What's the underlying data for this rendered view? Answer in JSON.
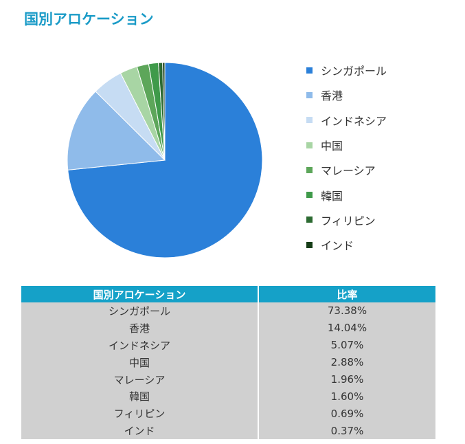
{
  "page": {
    "title": "国別アロケーション"
  },
  "chart_data": {
    "type": "pie",
    "title": "国別アロケーション",
    "legend_position": "right",
    "categories": [
      "シンガポール",
      "香港",
      "インドネシア",
      "中国",
      "マレーシア",
      "韓国",
      "フィリピン",
      "インド"
    ],
    "values": [
      73.38,
      14.04,
      5.07,
      2.88,
      1.96,
      1.6,
      0.69,
      0.37
    ],
    "unit": "%",
    "colors": [
      "#2b80d9",
      "#8fbbea",
      "#c6dcf3",
      "#a8d5a4",
      "#5da65a",
      "#3f9a4a",
      "#2c6a31",
      "#163d17"
    ]
  },
  "table": {
    "headers": {
      "country": "国別アロケーション",
      "ratio": "比率"
    },
    "rows": [
      {
        "country": "シンガポール",
        "ratio": "73.38%"
      },
      {
        "country": "香港",
        "ratio": "14.04%"
      },
      {
        "country": "インドネシア",
        "ratio": "5.07%"
      },
      {
        "country": "中国",
        "ratio": "2.88%"
      },
      {
        "country": "マレーシア",
        "ratio": "1.96%"
      },
      {
        "country": "韓国",
        "ratio": "1.60%"
      },
      {
        "country": "フィリピン",
        "ratio": "0.69%"
      },
      {
        "country": "インド",
        "ratio": "0.37%"
      }
    ]
  }
}
